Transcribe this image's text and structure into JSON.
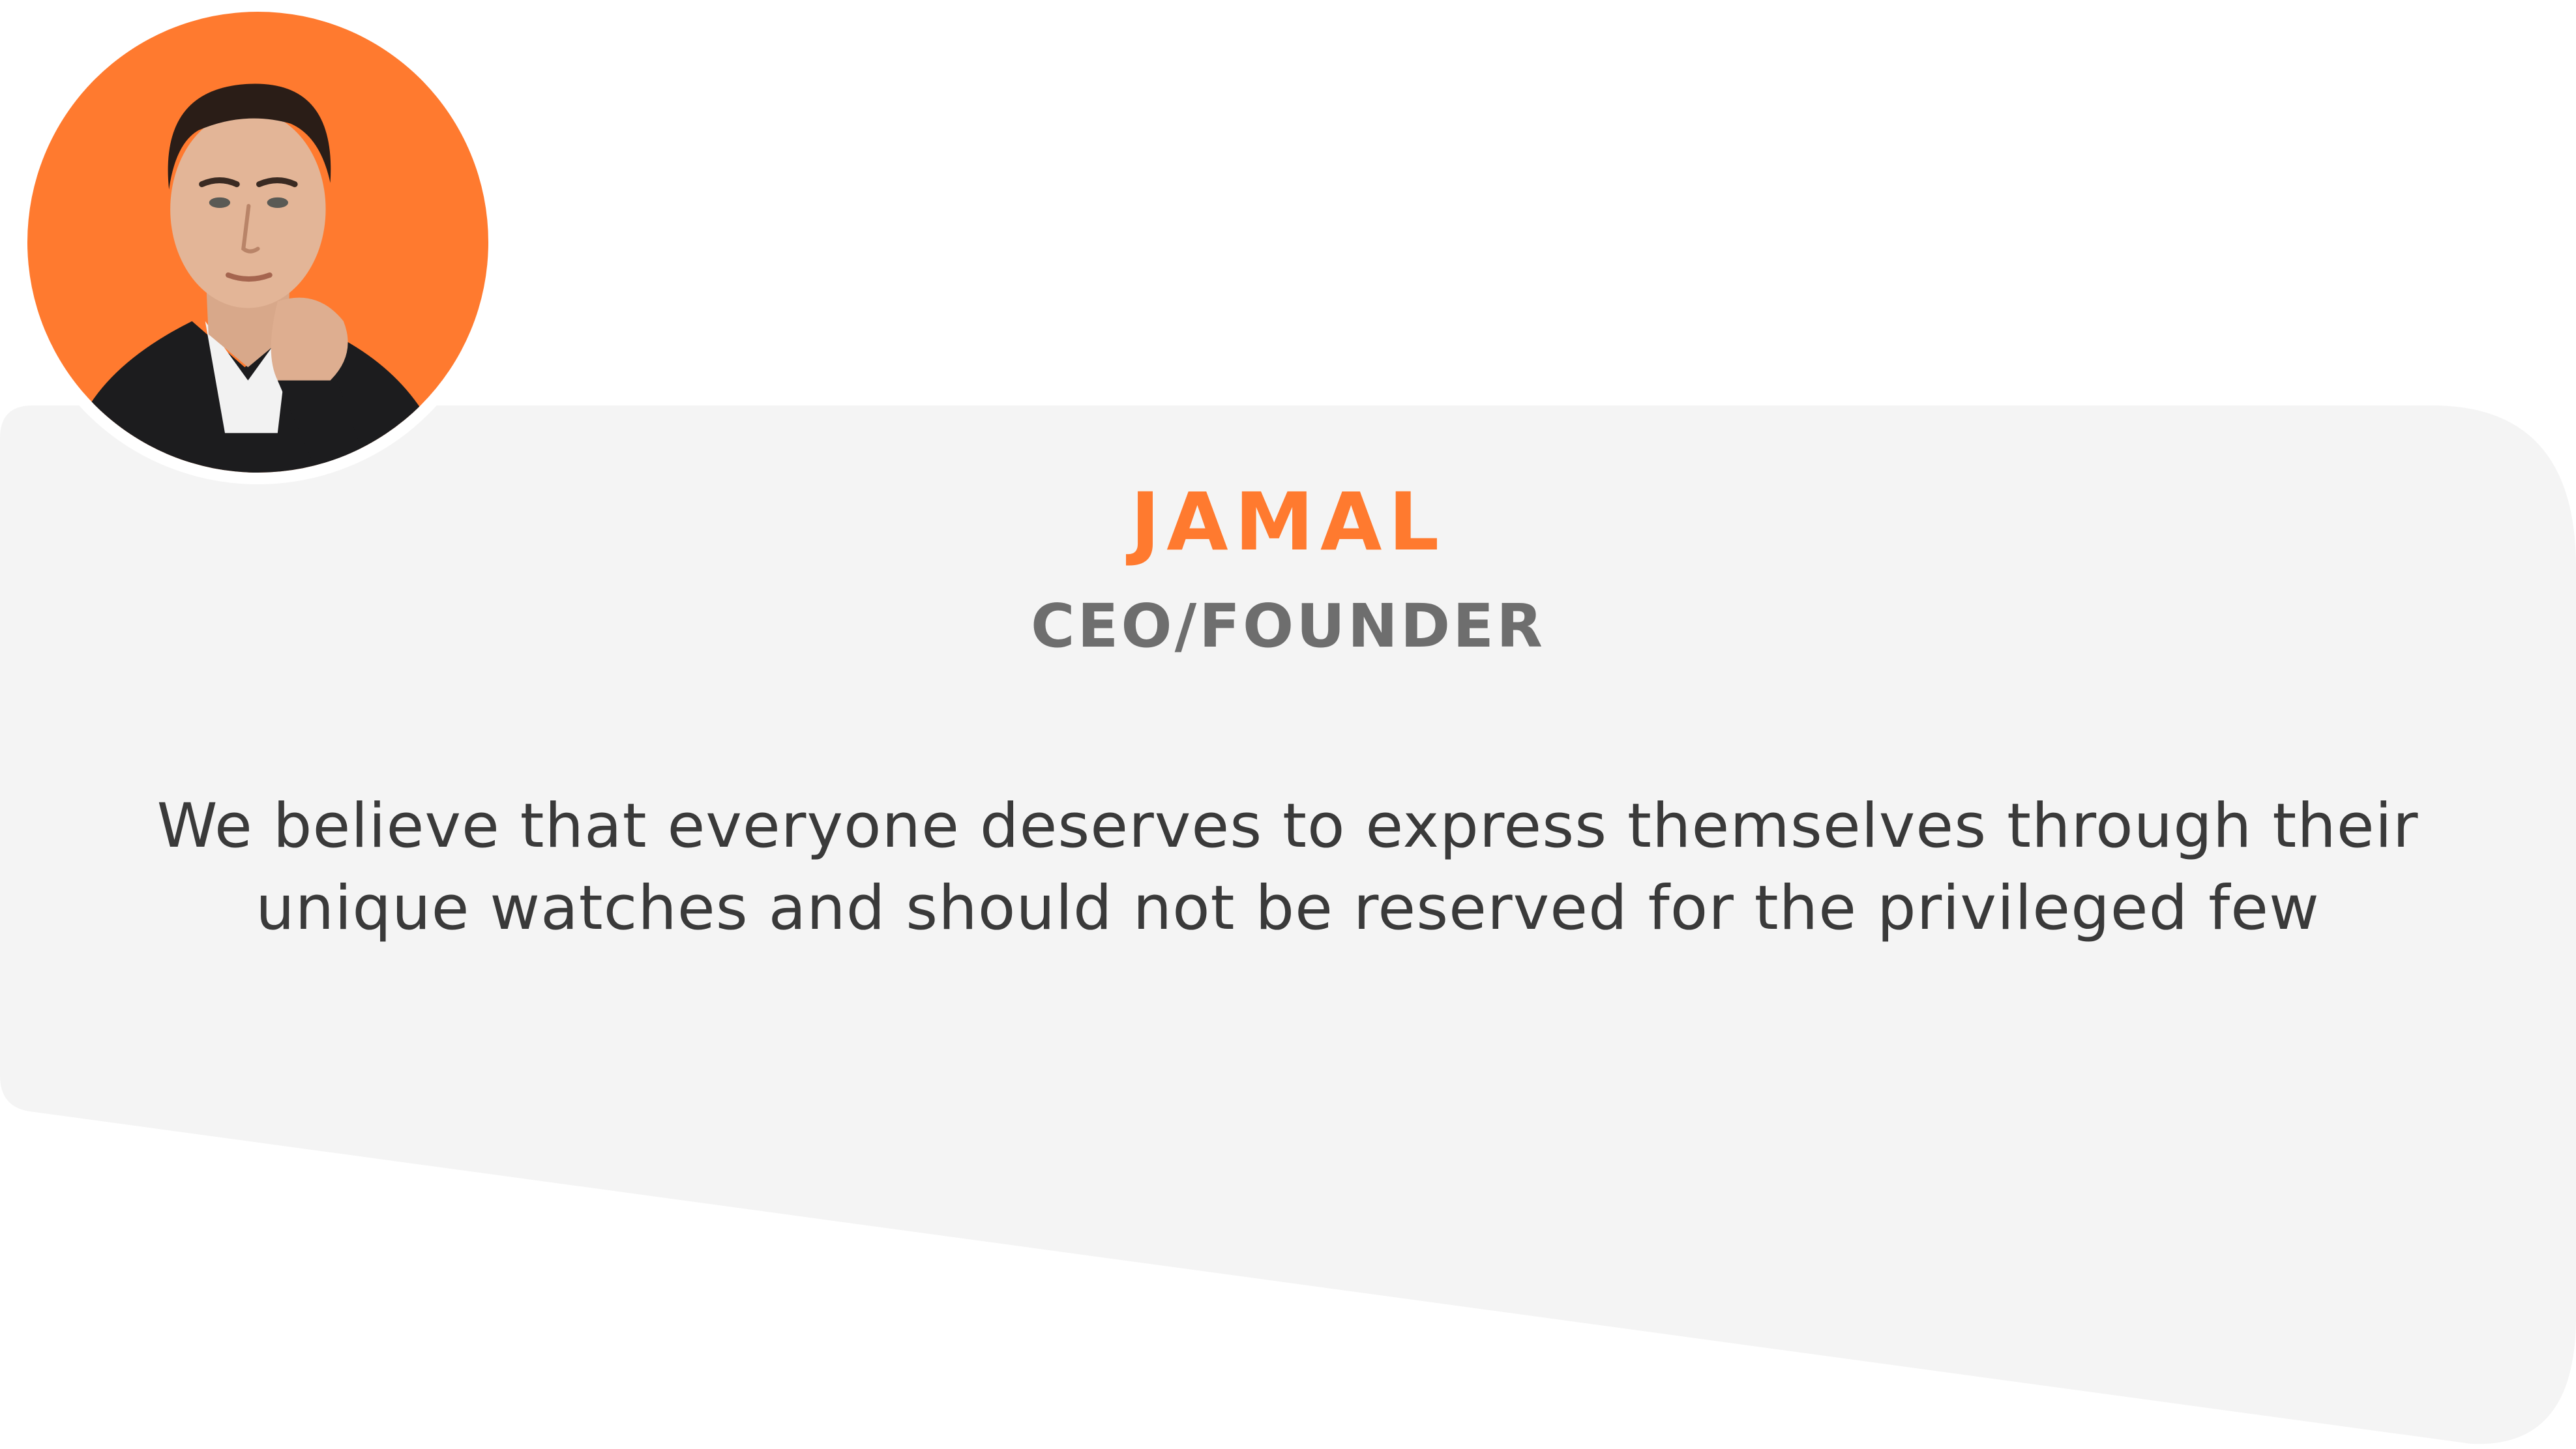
{
  "profile": {
    "name": "JAMAL",
    "role": "CEO/FOUNDER",
    "quote": "We believe that everyone deserves to express themselves through their unique watches and should not be reserved for the privileged few",
    "avatar_icon": "person-portrait-icon"
  },
  "colors": {
    "accent": "#FF7A2F",
    "card_background": "#F4F4F4",
    "role_text": "#6E6E6E",
    "body_text": "#3A3A3A",
    "page_background": "#FFFFFF"
  }
}
